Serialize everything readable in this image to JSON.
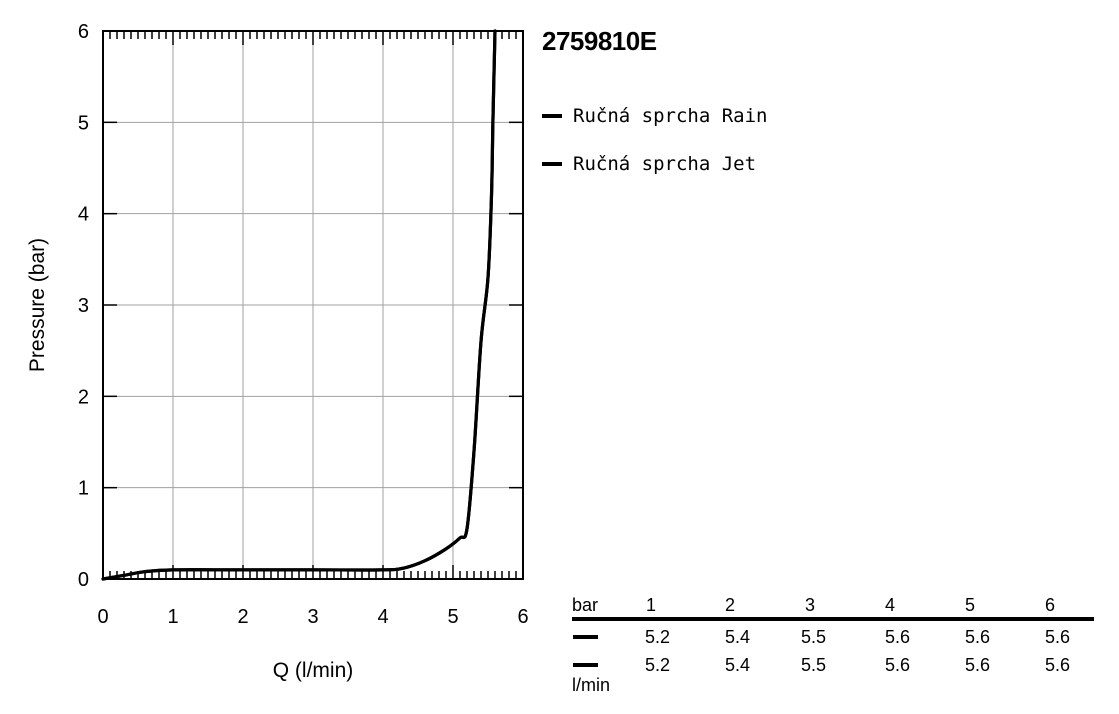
{
  "chart_data": {
    "type": "line",
    "title": "2759810E",
    "xlabel": "Q (l/min)",
    "ylabel": "Pressure (bar)",
    "xlim": [
      0,
      6
    ],
    "ylim": [
      0,
      6
    ],
    "x_ticks": [
      "0",
      "1",
      "2",
      "3",
      "4",
      "5",
      "6"
    ],
    "y_ticks": [
      "0",
      "1",
      "2",
      "3",
      "4",
      "5",
      "6"
    ],
    "grid": true,
    "legend_position": "right",
    "series": [
      {
        "name": "Ručná sprcha Rain",
        "color": "#000000",
        "points": [
          [
            0,
            0
          ],
          [
            0.3,
            0.04
          ],
          [
            0.6,
            0.08
          ],
          [
            1.0,
            0.1
          ],
          [
            2.0,
            0.1
          ],
          [
            3.0,
            0.1
          ],
          [
            4.0,
            0.1
          ],
          [
            4.3,
            0.12
          ],
          [
            4.6,
            0.2
          ],
          [
            4.9,
            0.33
          ],
          [
            5.1,
            0.45
          ],
          [
            5.2,
            0.55
          ],
          [
            5.3,
            1.4
          ],
          [
            5.4,
            2.6
          ],
          [
            5.5,
            3.3
          ],
          [
            5.55,
            4.2
          ],
          [
            5.57,
            5.0
          ],
          [
            5.6,
            6.0
          ]
        ]
      },
      {
        "name": "Ručná sprcha Jet",
        "color": "#000000",
        "points": [
          [
            0,
            0
          ],
          [
            0.3,
            0.04
          ],
          [
            0.6,
            0.08
          ],
          [
            1.0,
            0.1
          ],
          [
            2.0,
            0.1
          ],
          [
            3.0,
            0.1
          ],
          [
            4.0,
            0.1
          ],
          [
            4.3,
            0.12
          ],
          [
            4.6,
            0.2
          ],
          [
            4.9,
            0.33
          ],
          [
            5.1,
            0.45
          ],
          [
            5.2,
            0.55
          ],
          [
            5.3,
            1.4
          ],
          [
            5.4,
            2.6
          ],
          [
            5.5,
            3.3
          ],
          [
            5.55,
            4.2
          ],
          [
            5.57,
            5.0
          ],
          [
            5.6,
            6.0
          ]
        ]
      }
    ]
  },
  "product_id": "2759810E",
  "legend": [
    {
      "label": "Ručná sprcha Rain"
    },
    {
      "label": "Ručná sprcha Jet"
    }
  ],
  "flow_table": {
    "header_label": "bar",
    "unit_label": "l/min",
    "pressures": [
      "1",
      "2",
      "3",
      "4",
      "5",
      "6"
    ],
    "rows": [
      {
        "values": [
          "5.2",
          "5.4",
          "5.5",
          "5.6",
          "5.6",
          "5.6"
        ]
      },
      {
        "values": [
          "5.2",
          "5.4",
          "5.5",
          "5.6",
          "5.6",
          "5.6"
        ]
      }
    ]
  }
}
